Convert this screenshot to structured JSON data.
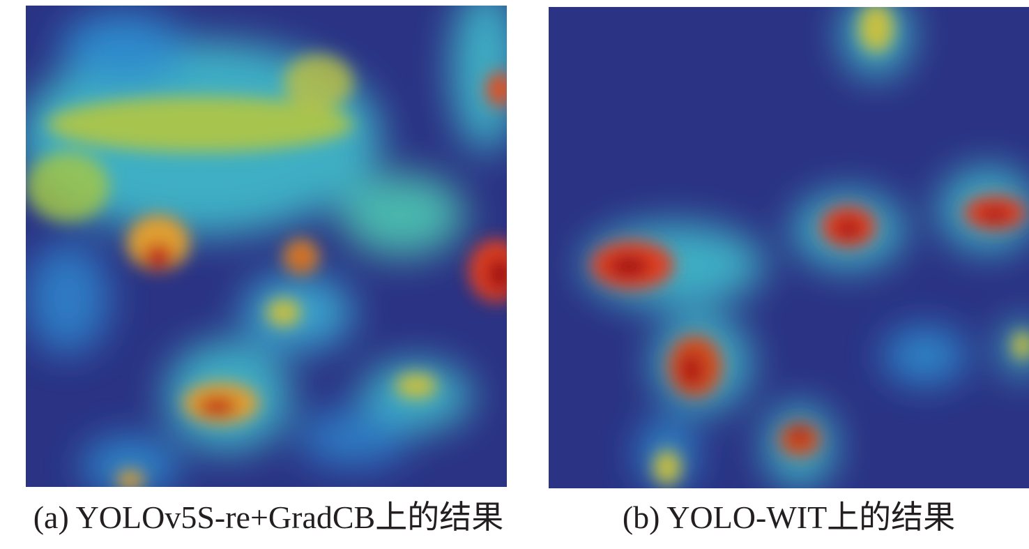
{
  "panels": [
    {
      "caption": "(a) YOLOv5S-re+GradCB上的结果"
    },
    {
      "caption": "(b) YOLO-WIT上的结果"
    }
  ]
}
